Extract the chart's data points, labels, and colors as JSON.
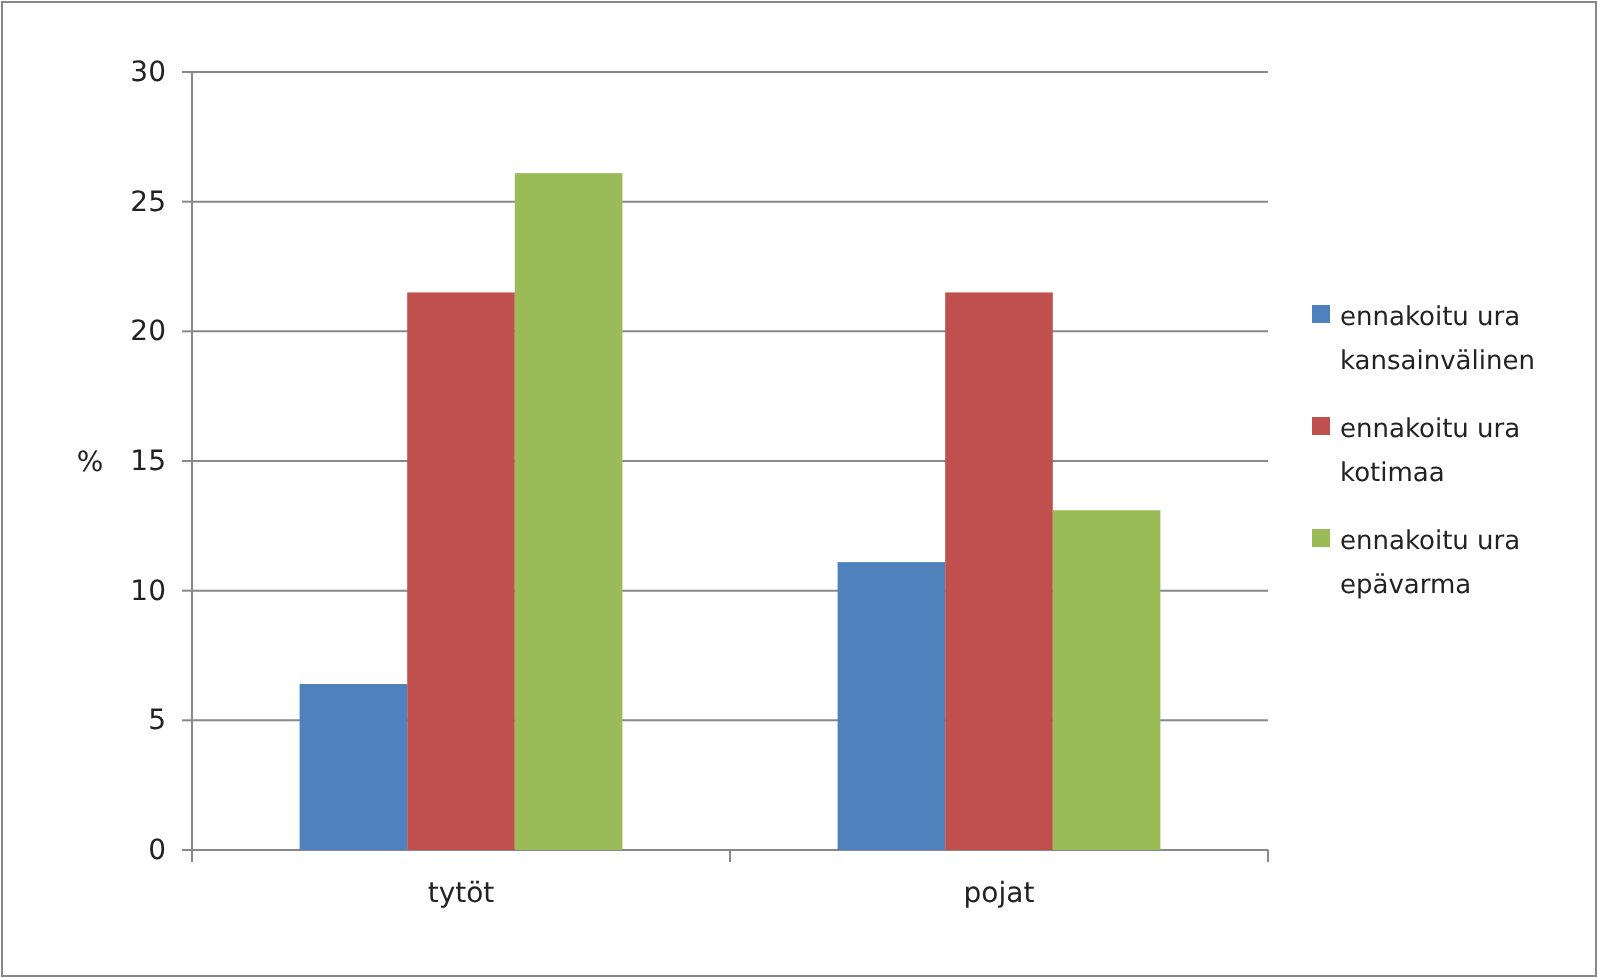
{
  "chart_data": {
    "type": "bar",
    "ylabel": "%",
    "categories": [
      "tytöt",
      "pojat"
    ],
    "series": [
      {
        "name": "ennakoitu ura kansainvälinen",
        "color": "#4f81bd",
        "values": [
          6.4,
          11.1
        ]
      },
      {
        "name": "ennakoitu ura kotimaa",
        "color": "#c0504d",
        "values": [
          21.5,
          21.5
        ]
      },
      {
        "name": "ennakoitu ura epävarma",
        "color": "#9bbb59",
        "values": [
          26.1,
          13.1
        ]
      }
    ],
    "ylim": [
      0,
      30
    ],
    "yticks": [
      0,
      5,
      10,
      15,
      20,
      25,
      30
    ],
    "grid": "y",
    "legend": "right"
  }
}
